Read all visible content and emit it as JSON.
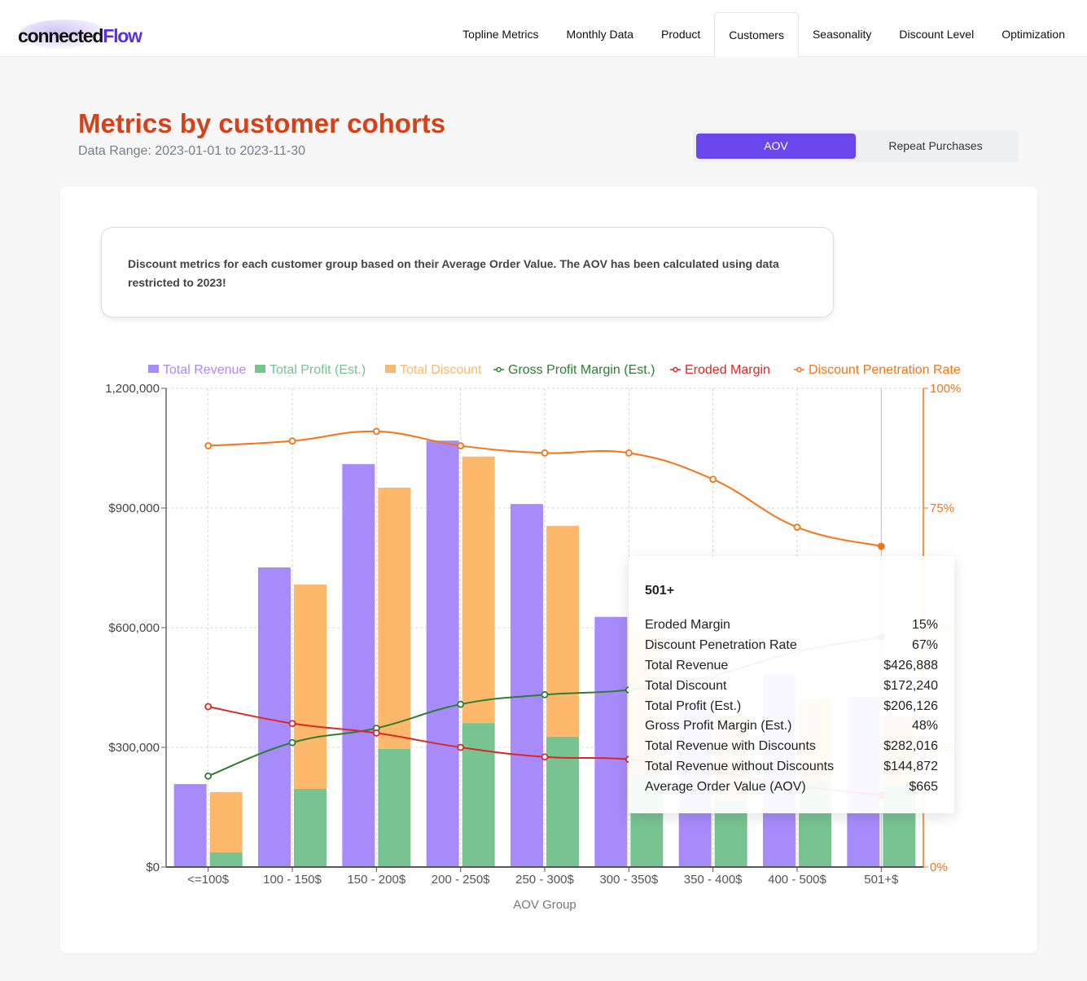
{
  "nav": {
    "logo": {
      "part1": "connected",
      "part2": "Flow"
    },
    "tabs": [
      {
        "label": "Topline Metrics",
        "active": false
      },
      {
        "label": "Monthly Data",
        "active": false
      },
      {
        "label": "Product",
        "active": false
      },
      {
        "label": "Customers",
        "active": true
      },
      {
        "label": "Seasonality",
        "active": false
      },
      {
        "label": "Discount Level",
        "active": false
      },
      {
        "label": "Optimization",
        "active": false
      }
    ]
  },
  "header": {
    "title": "Metrics by customer cohorts",
    "date_range": "Data Range: 2023-01-01 to 2023-11-30"
  },
  "toggle": {
    "options": [
      {
        "label": "AOV",
        "active": true
      },
      {
        "label": "Repeat Purchases",
        "active": false
      }
    ]
  },
  "info_text": "Discount metrics for each customer group based on their Average Order Value. The AOV has been calculated using data restricted to 2023!",
  "colors": {
    "revenue": "#a78bfa",
    "profit": "#78c392",
    "discount": "#fdb86b",
    "gross_margin": "#2e7d32",
    "eroded": "#dc2626",
    "penetration": "#f97316",
    "title": "#d4421a",
    "accent": "#6b46ec"
  },
  "chart_data": {
    "type": "bar",
    "xlabel": "AOV Group",
    "ylabel_left": "",
    "ylabel_right": "",
    "categories": [
      "<=100$",
      "100 - 150$",
      "150 - 200$",
      "200 - 250$",
      "250 - 300$",
      "300 - 350$",
      "350 - 400$",
      "400 - 500$",
      "501+$"
    ],
    "y_left": {
      "min": 0,
      "max": 1200000,
      "ticks": [
        0,
        300000,
        600000,
        900000,
        1200000
      ],
      "tick_labels": [
        "$0",
        "$300,000",
        "$600,000",
        "$900,000",
        "1,200,000"
      ]
    },
    "y_right": {
      "min": 0,
      "max": 100,
      "ticks": [
        0,
        25,
        50,
        75,
        100
      ],
      "tick_labels": [
        "0%",
        "25%",
        "50%",
        "75%",
        "100%"
      ]
    },
    "grid": true,
    "legend_position": "top",
    "series": [
      {
        "name": "Total Revenue",
        "kind": "bar",
        "axis": "left",
        "stack": "a",
        "values": [
          208000,
          751000,
          1010000,
          1069000,
          910000,
          627000,
          414000,
          482000,
          426888
        ]
      },
      {
        "name": "Total Profit (Est.)",
        "kind": "bar",
        "axis": "left",
        "stack": "b",
        "values": [
          37000,
          196000,
          296000,
          361000,
          327000,
          233000,
          165000,
          214000,
          206126
        ]
      },
      {
        "name": "Total Discount",
        "kind": "bar",
        "axis": "left",
        "stack": "b",
        "values": [
          151000,
          512000,
          655000,
          668000,
          528000,
          357000,
          215000,
          208000,
          172240
        ]
      },
      {
        "name": "Gross Profit Margin (Est.)",
        "kind": "line",
        "axis": "right",
        "values": [
          19,
          26,
          29,
          34,
          36,
          37,
          40,
          45,
          48
        ]
      },
      {
        "name": "Eroded Margin",
        "kind": "line",
        "axis": "right",
        "values": [
          33.5,
          30,
          28,
          25,
          23,
          22.5,
          20,
          17,
          15
        ]
      },
      {
        "name": "Discount Penetration Rate",
        "kind": "line",
        "axis": "right",
        "values": [
          88,
          89,
          91,
          88,
          86.5,
          86.5,
          81,
          71,
          67
        ]
      }
    ]
  },
  "tooltip": {
    "title": "501+",
    "rows": [
      {
        "label": "Eroded Margin",
        "value": "15%"
      },
      {
        "label": "Discount Penetration Rate",
        "value": "67%"
      },
      {
        "label": "Total Revenue",
        "value": "$426,888"
      },
      {
        "label": "Total Discount",
        "value": "$172,240"
      },
      {
        "label": "Total Profit (Est.)",
        "value": "$206,126"
      },
      {
        "label": "Gross Profit Margin (Est.)",
        "value": "48%"
      },
      {
        "label": "Total Revenue with Discounts",
        "value": "$282,016"
      },
      {
        "label": "Total Revenue without Discounts",
        "value": "$144,872"
      },
      {
        "label": "Average Order Value (AOV)",
        "value": "$665"
      }
    ]
  }
}
